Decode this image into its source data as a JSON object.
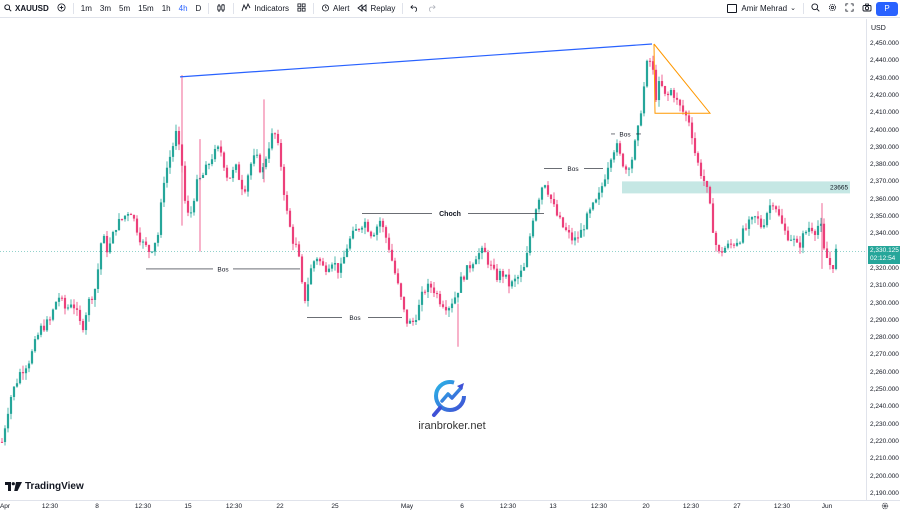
{
  "toolbar": {
    "symbol": "XAUUSD",
    "timeframes": [
      "1m",
      "3m",
      "5m",
      "15m",
      "1h",
      "4h",
      "D"
    ],
    "active_timeframe": "4h",
    "indicators_label": "Indicators",
    "alert_label": "Alert",
    "replay_label": "Replay",
    "user_name": "Amir Mehrad",
    "publish_label": "P"
  },
  "price_scale": {
    "currency": "USD",
    "ticks": [
      "2,450.000",
      "2,440.000",
      "2,430.000",
      "2,420.000",
      "2,410.000",
      "2,400.000",
      "2,390.000",
      "2,380.000",
      "2,370.000",
      "2,360.000",
      "2,350.000",
      "2,340.000",
      "2,330.000",
      "2,320.000",
      "2,310.000",
      "2,300.000",
      "2,290.000",
      "2,280.000",
      "2,270.000",
      "2,260.000",
      "2,250.000",
      "2,240.000",
      "2,230.000",
      "2,220.000",
      "2,210.000",
      "2,200.000",
      "2,190.000"
    ],
    "current_price": "2,330.125",
    "countdown": "02:12:54"
  },
  "time_axis": {
    "labels": [
      "Apr",
      "12:30",
      "8",
      "12:30",
      "15",
      "12:30",
      "22",
      "25",
      "May",
      "6",
      "12:30",
      "13",
      "12:30",
      "20",
      "12:30",
      "27",
      "12:30",
      "Jun"
    ]
  },
  "chart_data": {
    "type": "candlestick",
    "symbol": "XAUUSD",
    "ylim": [
      2190,
      2458
    ],
    "annotations": {
      "bos_labels": [
        "Bos",
        "Bos",
        "Bos",
        "Bos"
      ],
      "choch_label": "Choch",
      "zone_label": "23665"
    },
    "colors": {
      "up": "#26a69a",
      "down": "#ec407a",
      "trendline": "#2962ff",
      "triangle": "#ff9800",
      "zone": "#b2dfdb"
    }
  },
  "branding": {
    "tradingview": "TradingView",
    "watermark": "iranbroker.net"
  }
}
